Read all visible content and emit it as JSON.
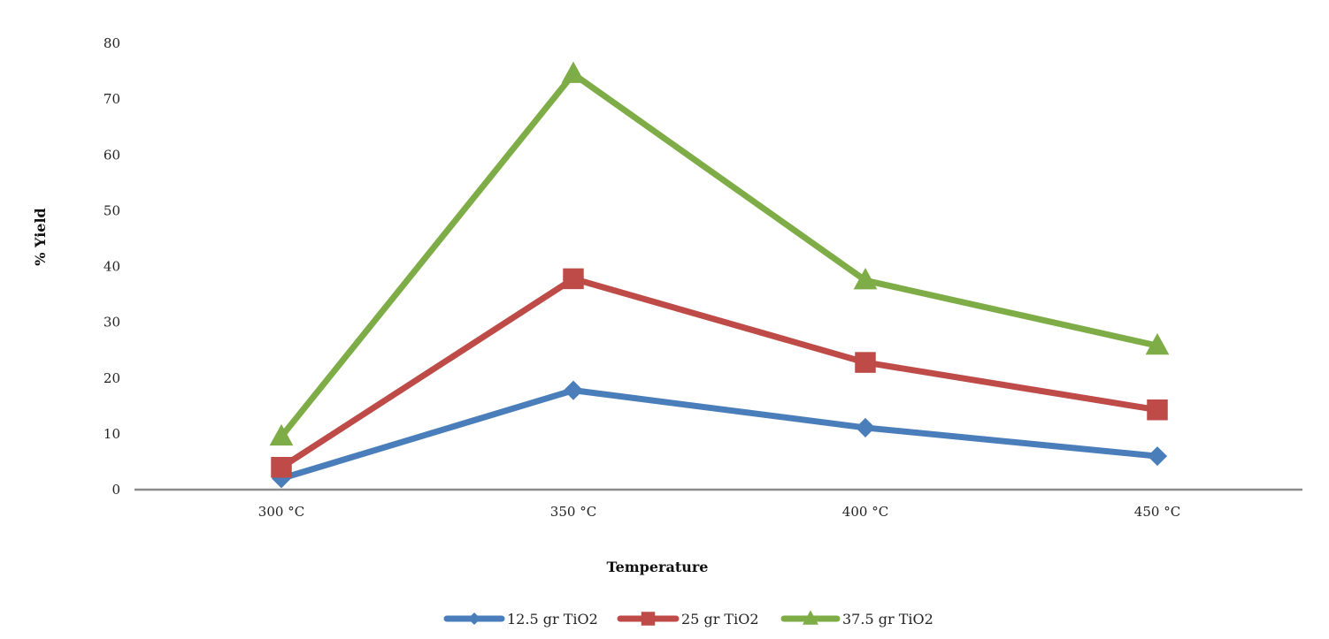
{
  "chart_data": {
    "type": "line",
    "title": "",
    "xlabel": "Temperature",
    "ylabel": "% Yield",
    "categories": [
      "300 °C",
      "350 °C",
      "400 °C",
      "450 °C"
    ],
    "ylim": [
      0,
      80
    ],
    "yticks": [
      0,
      10,
      20,
      30,
      40,
      50,
      60,
      70,
      80
    ],
    "grid": false,
    "legend_position": "bottom",
    "series": [
      {
        "name": "12.5 gr TiO2",
        "values": [
          2,
          17.8,
          11.1,
          6
        ],
        "color": "#4a7ebb",
        "marker": "diamond"
      },
      {
        "name": "25 gr TiO2",
        "values": [
          4,
          37.8,
          22.8,
          14.3
        ],
        "color": "#be4b48",
        "marker": "square"
      },
      {
        "name": "37.5 gr TiO2",
        "values": [
          9.5,
          74.5,
          37.5,
          25.8
        ],
        "color": "#7eac46",
        "marker": "triangle"
      }
    ]
  }
}
